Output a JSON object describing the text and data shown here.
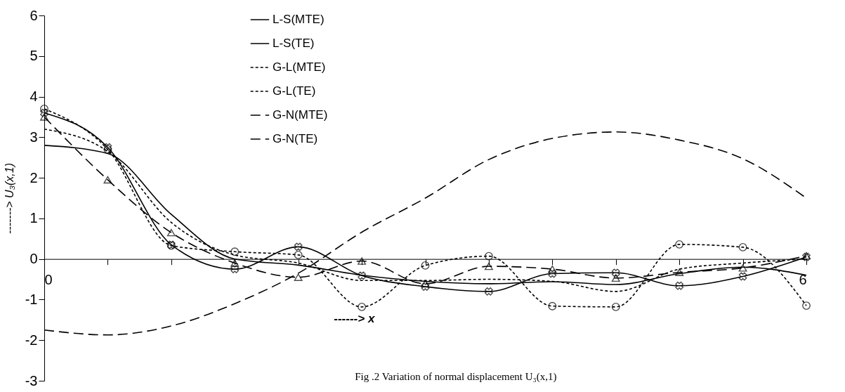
{
  "chart_data": {
    "type": "line",
    "xlabel": "------> x",
    "ylabel": "-------> U₃(x,1)",
    "annotations": [
      "Fig .2 Variation of normal displacement U₃(x,1)"
    ],
    "x": [
      0,
      0.5,
      1,
      1.5,
      2,
      2.5,
      3,
      3.5,
      4,
      4.5,
      5,
      5.5,
      6
    ],
    "xlim": [
      0,
      6
    ],
    "xticks": [
      0,
      {
        "value": 0.5,
        "label": null
      },
      {
        "value": 1,
        "label": null
      },
      {
        "value": 1.5,
        "label": null
      },
      {
        "value": 2,
        "label": null
      },
      {
        "value": 2.5,
        "label": null
      },
      {
        "value": 3,
        "label": null
      },
      {
        "value": 3.5,
        "label": null
      },
      {
        "value": 4,
        "label": null
      },
      {
        "value": 4.5,
        "label": null
      },
      {
        "value": 5,
        "label": null
      },
      {
        "value": 5.5,
        "label": null
      },
      6
    ],
    "ylim": [
      -3,
      6
    ],
    "yticks": [
      -3,
      -2,
      -1,
      0,
      1,
      2,
      3,
      4,
      5,
      6
    ],
    "grid": false,
    "legend": "top",
    "series": [
      {
        "name": "L-S(MTE)",
        "color": "#000000",
        "line_style": "solid",
        "marker": "none",
        "values": [
          2.8,
          2.6,
          1.1,
          0.0,
          -0.15,
          -0.4,
          -0.55,
          -0.61,
          -0.56,
          -0.63,
          -0.36,
          -0.2,
          -0.4
        ]
      },
      {
        "name": "L-S(TE)",
        "color": "#000000",
        "line_style": "solid",
        "marker": "cross",
        "values": [
          3.6,
          2.75,
          0.35,
          -0.25,
          0.3,
          -0.41,
          -0.68,
          -0.8,
          -0.36,
          -0.34,
          -0.66,
          -0.43,
          0.05
        ]
      },
      {
        "name": "G-L(MTE)",
        "color": "#000000",
        "line_style": "dotted",
        "marker": "none",
        "values": [
          3.2,
          2.65,
          0.9,
          0.1,
          -0.1,
          -0.53,
          -0.53,
          -0.5,
          -0.55,
          -0.8,
          -0.25,
          -0.1,
          0.0
        ]
      },
      {
        "name": "G-L(TE)",
        "color": "#000000",
        "line_style": "dotted",
        "marker": "circle",
        "values": [
          3.7,
          2.7,
          0.33,
          0.18,
          0.1,
          -1.18,
          -0.16,
          0.07,
          -1.16,
          -1.18,
          0.36,
          0.29,
          -1.15
        ]
      },
      {
        "name": "G-N(MTE)",
        "color": "#000000",
        "line_style": "dashed",
        "marker": "none",
        "values": [
          -1.75,
          -1.87,
          -1.65,
          -1.1,
          -0.35,
          0.66,
          1.5,
          2.45,
          2.97,
          3.13,
          2.93,
          2.47,
          1.5
        ]
      },
      {
        "name": "G-N(TE)",
        "color": "#000000",
        "line_style": "dashed",
        "marker": "triangle",
        "values": [
          3.5,
          1.95,
          0.65,
          -0.1,
          -0.45,
          -0.05,
          -0.61,
          -0.18,
          -0.25,
          -0.47,
          -0.33,
          -0.22,
          0.08
        ]
      }
    ]
  }
}
